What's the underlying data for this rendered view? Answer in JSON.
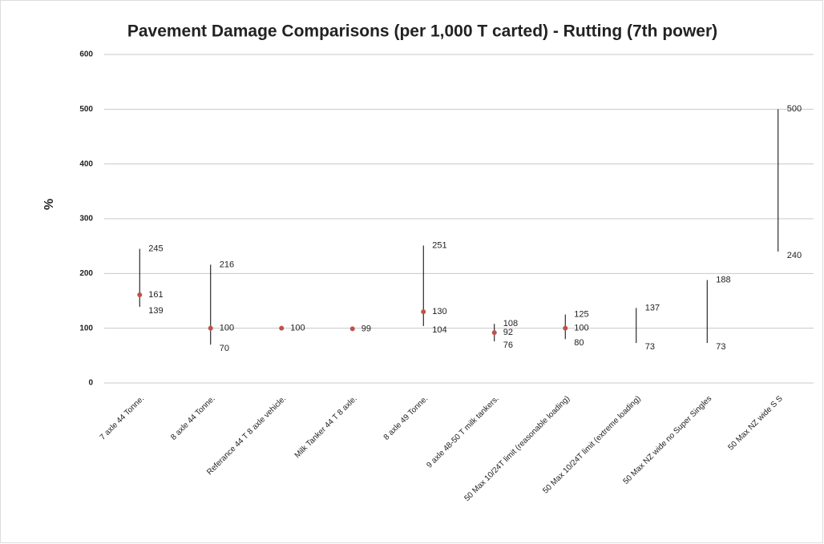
{
  "chart_data": {
    "type": "hilo",
    "title": "Pavement Damage Comparisons (per 1,000 T carted) - Rutting (7th power)",
    "y_label": "%",
    "categories": [
      "7 axle 44 Tonne.",
      "8 axle 44 Tonne.",
      "Referance 44 T 8 axle vehicle.",
      "Milk Tanker 44 T 8 axle.",
      "8 axle 49 Tonne.",
      "9 axle 48-50 T milk tankers.",
      "50 Max 10/24T limit (reasonable loading)",
      "50 Max 10/24T limit (extreme loading)",
      "50 Max NZ wide no Super Singles",
      "50 Max NZ wide S S"
    ],
    "series": [
      {
        "color": "#000000",
        "values": [
          245,
          216,
          null,
          null,
          251,
          108,
          125,
          137,
          188,
          500
        ]
      },
      {
        "color": "#000000",
        "values": [
          139,
          70,
          null,
          null,
          104,
          76,
          80,
          73,
          73,
          240
        ]
      },
      {
        "color": "#c0504d",
        "values": [
          161,
          100,
          100,
          99,
          130,
          92,
          100,
          null,
          null,
          null
        ]
      }
    ],
    "ylim": [
      0,
      600
    ],
    "yticks": [
      0,
      100,
      200,
      300,
      400,
      500,
      600
    ],
    "grid": true
  }
}
